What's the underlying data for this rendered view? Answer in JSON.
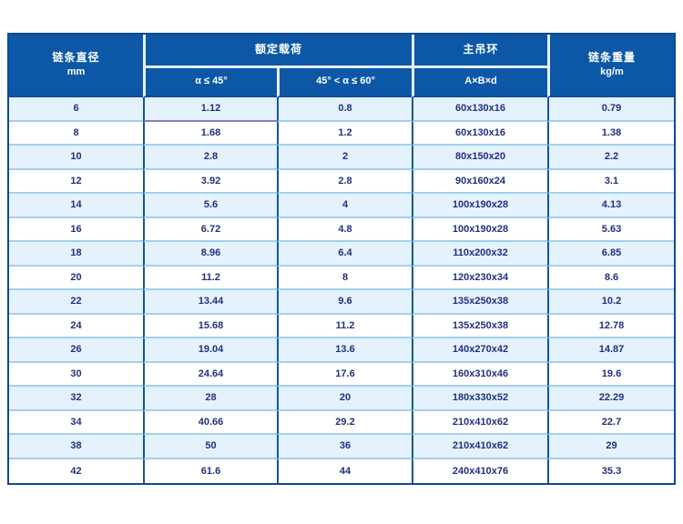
{
  "table": {
    "header": {
      "col_diameter": "链条直径",
      "col_diameter_unit": "mm",
      "group_rated_load": "额定载荷",
      "sub_alpha_le_45": "α ≤ 45°",
      "sub_45_lt_alpha_le_60": "45° < α ≤ 60°",
      "group_master_link": "主吊环",
      "sub_axbxd": "A×B×d",
      "col_weight": "链条重量",
      "col_weight_unit": "kg/m"
    },
    "rows": [
      [
        "6",
        "1.12",
        "0.8",
        "60x130x16",
        "0.79"
      ],
      [
        "8",
        "1.68",
        "1.2",
        "60x130x16",
        "1.38"
      ],
      [
        "10",
        "2.8",
        "2",
        "80x150x20",
        "2.2"
      ],
      [
        "12",
        "3.92",
        "2.8",
        "90x160x24",
        "3.1"
      ],
      [
        "14",
        "5.6",
        "4",
        "100x190x28",
        "4.13"
      ],
      [
        "16",
        "6.72",
        "4.8",
        "100x190x28",
        "5.63"
      ],
      [
        "18",
        "8.96",
        "6.4",
        "110x200x32",
        "6.85"
      ],
      [
        "20",
        "11.2",
        "8",
        "120x230x34",
        "8.6"
      ],
      [
        "22",
        "13.44",
        "9.6",
        "135x250x38",
        "10.2"
      ],
      [
        "24",
        "15.68",
        "11.2",
        "135x250x38",
        "12.78"
      ],
      [
        "26",
        "19.04",
        "13.6",
        "140x270x42",
        "14.87"
      ],
      [
        "30",
        "24.64",
        "17.6",
        "160x310x46",
        "19.6"
      ],
      [
        "32",
        "28",
        "20",
        "180x330x52",
        "22.29"
      ],
      [
        "34",
        "40.66",
        "29.2",
        "210x410x62",
        "22.7"
      ],
      [
        "38",
        "50",
        "36",
        "210x410x62",
        "29"
      ],
      [
        "42",
        "61.6",
        "44",
        "240x410x76",
        "35.3"
      ]
    ],
    "accent_underline_cell": [
      0,
      1
    ]
  },
  "colors": {
    "header-bg": "#0c58a6",
    "header-text": "#ffffff",
    "outer-border": "#0b4a98",
    "v-border": "#1254a3",
    "h-separator": "#a5cfe9",
    "row-alt-bg": "#e4f2fc",
    "row-bg": "#ffffff",
    "cell-text": "#23307c",
    "header-divider": "#e9f0f7",
    "accent-underline": "#8e7cc3"
  }
}
